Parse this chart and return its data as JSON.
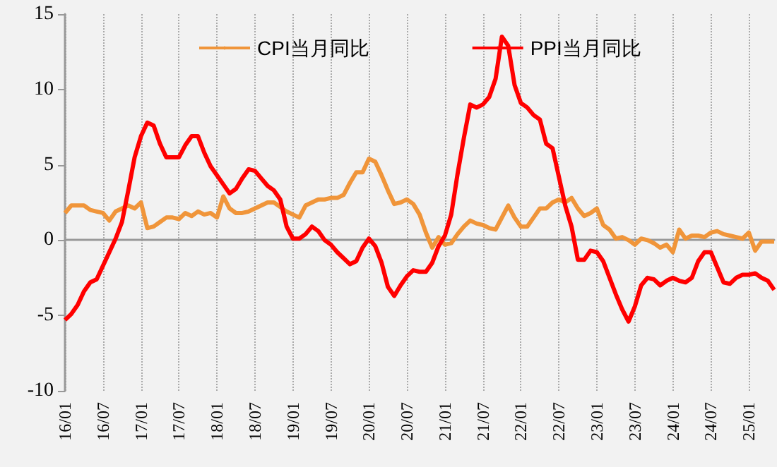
{
  "chart_data": {
    "type": "line",
    "categories": [
      "16/01",
      null,
      null,
      null,
      null,
      null,
      "16/07",
      null,
      null,
      null,
      null,
      null,
      "17/01",
      null,
      null,
      null,
      null,
      null,
      "17/07",
      null,
      null,
      null,
      null,
      null,
      "18/01",
      null,
      null,
      null,
      null,
      null,
      "18/07",
      null,
      null,
      null,
      null,
      null,
      "19/01",
      null,
      null,
      null,
      null,
      null,
      "19/07",
      null,
      null,
      null,
      null,
      null,
      "20/01",
      null,
      null,
      null,
      null,
      null,
      "20/07",
      null,
      null,
      null,
      null,
      null,
      "21/01",
      null,
      null,
      null,
      null,
      null,
      "21/07",
      null,
      null,
      null,
      null,
      null,
      "22/01",
      null,
      null,
      null,
      null,
      null,
      "22/07",
      null,
      null,
      null,
      null,
      null,
      "23/01",
      null,
      null,
      null,
      null,
      null,
      "23/07",
      null,
      null,
      null,
      null,
      null,
      "24/01",
      null,
      null,
      null,
      null,
      null,
      "24/07",
      null,
      null,
      null,
      null,
      null,
      "25/01",
      null,
      null,
      null,
      null
    ],
    "series": [
      {
        "name": "CPI当月同比",
        "color": "#f0953a",
        "values": [
          1.8,
          2.3,
          2.3,
          2.3,
          2.0,
          1.9,
          1.8,
          1.3,
          1.9,
          2.1,
          2.3,
          2.1,
          2.5,
          0.8,
          0.9,
          1.2,
          1.5,
          1.5,
          1.4,
          1.8,
          1.6,
          1.9,
          1.7,
          1.8,
          1.5,
          2.9,
          2.1,
          1.8,
          1.8,
          1.9,
          2.1,
          2.3,
          2.5,
          2.5,
          2.2,
          1.9,
          1.7,
          1.5,
          2.3,
          2.5,
          2.7,
          2.7,
          2.8,
          2.8,
          3.0,
          3.8,
          4.5,
          4.5,
          5.4,
          5.2,
          4.3,
          3.3,
          2.4,
          2.5,
          2.7,
          2.4,
          1.7,
          0.5,
          -0.5,
          0.2,
          -0.3,
          -0.2,
          0.4,
          0.9,
          1.3,
          1.1,
          1.0,
          0.8,
          0.7,
          1.5,
          2.3,
          1.5,
          0.9,
          0.9,
          1.5,
          2.1,
          2.1,
          2.5,
          2.7,
          2.5,
          2.8,
          2.1,
          1.6,
          1.8,
          2.1,
          1.0,
          0.7,
          0.1,
          0.2,
          0.0,
          -0.3,
          0.1,
          0.0,
          -0.2,
          -0.5,
          -0.3,
          -0.8,
          0.7,
          0.1,
          0.3,
          0.3,
          0.2,
          0.5,
          0.6,
          0.4,
          0.3,
          0.2,
          0.1,
          0.5,
          -0.7,
          -0.1,
          -0.1,
          -0.1
        ]
      },
      {
        "name": "PPI当月同比",
        "color": "#ff0000",
        "values": [
          -5.3,
          -4.9,
          -4.3,
          -3.4,
          -2.8,
          -2.6,
          -1.7,
          -0.8,
          0.1,
          1.2,
          3.3,
          5.5,
          6.9,
          7.8,
          7.6,
          6.4,
          5.5,
          5.5,
          5.5,
          6.3,
          6.9,
          6.9,
          5.8,
          4.9,
          4.3,
          3.7,
          3.1,
          3.4,
          4.1,
          4.7,
          4.6,
          4.1,
          3.6,
          3.3,
          2.7,
          0.9,
          0.1,
          0.1,
          0.4,
          0.9,
          0.6,
          0.0,
          -0.3,
          -0.8,
          -1.2,
          -1.6,
          -1.4,
          -0.5,
          0.1,
          -0.4,
          -1.5,
          -3.1,
          -3.7,
          -3.0,
          -2.4,
          -2.0,
          -2.1,
          -2.1,
          -1.5,
          -0.4,
          0.3,
          1.7,
          4.4,
          6.8,
          9.0,
          8.8,
          9.0,
          9.5,
          10.7,
          13.5,
          12.9,
          10.3,
          9.1,
          8.8,
          8.3,
          8.0,
          6.4,
          6.1,
          4.2,
          2.3,
          0.9,
          -1.3,
          -1.3,
          -0.7,
          -0.8,
          -1.4,
          -2.5,
          -3.6,
          -4.6,
          -5.4,
          -4.4,
          -3.0,
          -2.5,
          -2.6,
          -3.0,
          -2.7,
          -2.5,
          -2.7,
          -2.8,
          -2.5,
          -1.4,
          -0.8,
          -0.8,
          -1.8,
          -2.8,
          -2.9,
          -2.5,
          -2.3,
          -2.3,
          -2.2,
          -2.5,
          -2.7,
          -3.3
        ]
      }
    ],
    "ylim": [
      -10,
      15
    ],
    "yticks": [
      -10,
      -5,
      0,
      5,
      10,
      15
    ],
    "grid": "x",
    "legend": "top",
    "marker": "none",
    "line_style": "solid"
  }
}
